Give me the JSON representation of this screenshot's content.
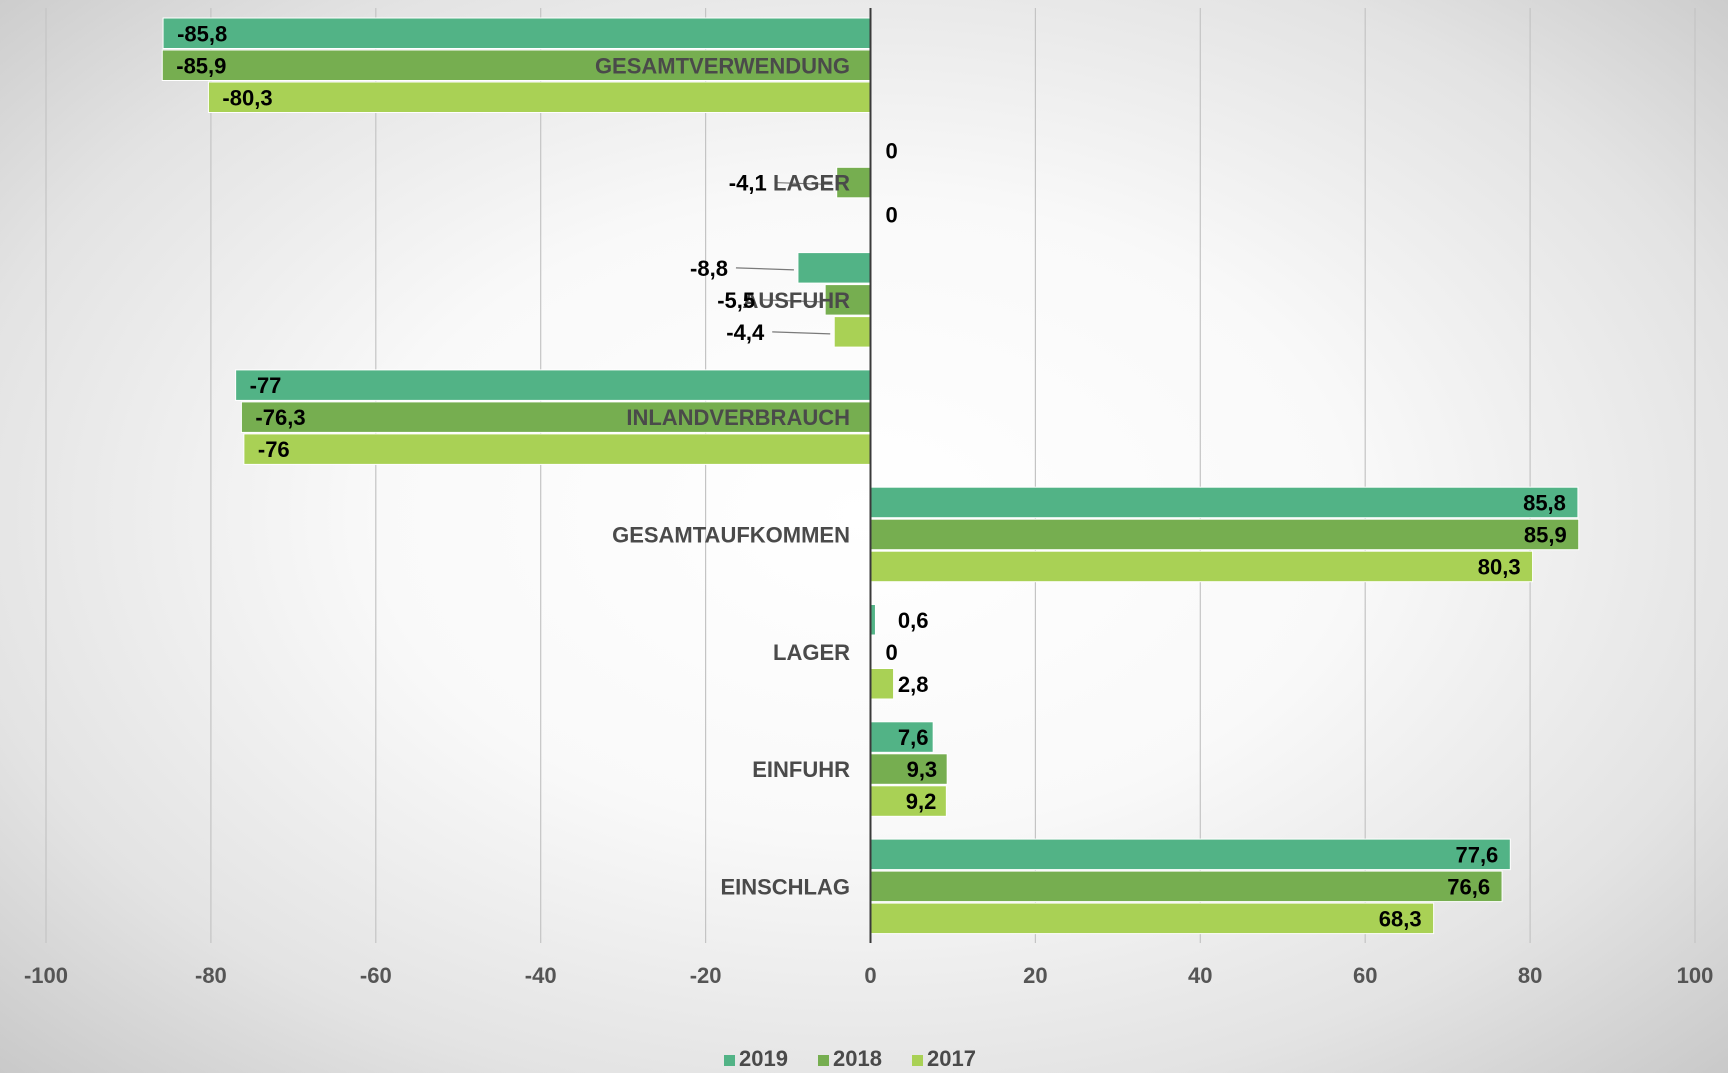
{
  "chart_data": {
    "type": "bar",
    "orientation": "horizontal",
    "categories": [
      "GESAMTVERWENDUNG",
      "LAGER",
      "AUSFUHR",
      "INLANDVERBRAUCH",
      "GESAMTAUFKOMMEN",
      "LAGER",
      "EINFUHR",
      "EINSCHLAG"
    ],
    "series": [
      {
        "name": "2019",
        "color": "#52b386",
        "values": [
          -85.8,
          0,
          -8.8,
          -77,
          85.8,
          0.6,
          7.6,
          77.6
        ],
        "labels": [
          "-85,8",
          "0",
          "-8,8",
          "-77",
          "85,8",
          "0,6",
          "7,6",
          "77,6"
        ]
      },
      {
        "name": "2018",
        "color": "#76ae50",
        "values": [
          -85.9,
          -4.1,
          -5.5,
          -76.3,
          85.9,
          0,
          9.3,
          76.6
        ],
        "labels": [
          "-85,9",
          "-4,1",
          "-5,5",
          "-76,3",
          "85,9",
          "0",
          "9,3",
          "76,6"
        ]
      },
      {
        "name": "2017",
        "color": "#a9d155",
        "values": [
          -80.3,
          0,
          -4.4,
          -76,
          80.3,
          2.8,
          9.2,
          68.3
        ],
        "labels": [
          "-80,3",
          "0",
          "-4,4",
          "-76",
          "80,3",
          "2,8",
          "9,2",
          "68,3"
        ]
      }
    ],
    "xlim": [
      -100,
      100
    ],
    "xticks": [
      "-100",
      "-80",
      "-60",
      "-40",
      "-20",
      "0",
      "20",
      "40",
      "60",
      "80",
      "100"
    ],
    "grid": "vertical",
    "legend": "bottom-center",
    "title": "",
    "xlabel": "",
    "ylabel": ""
  }
}
